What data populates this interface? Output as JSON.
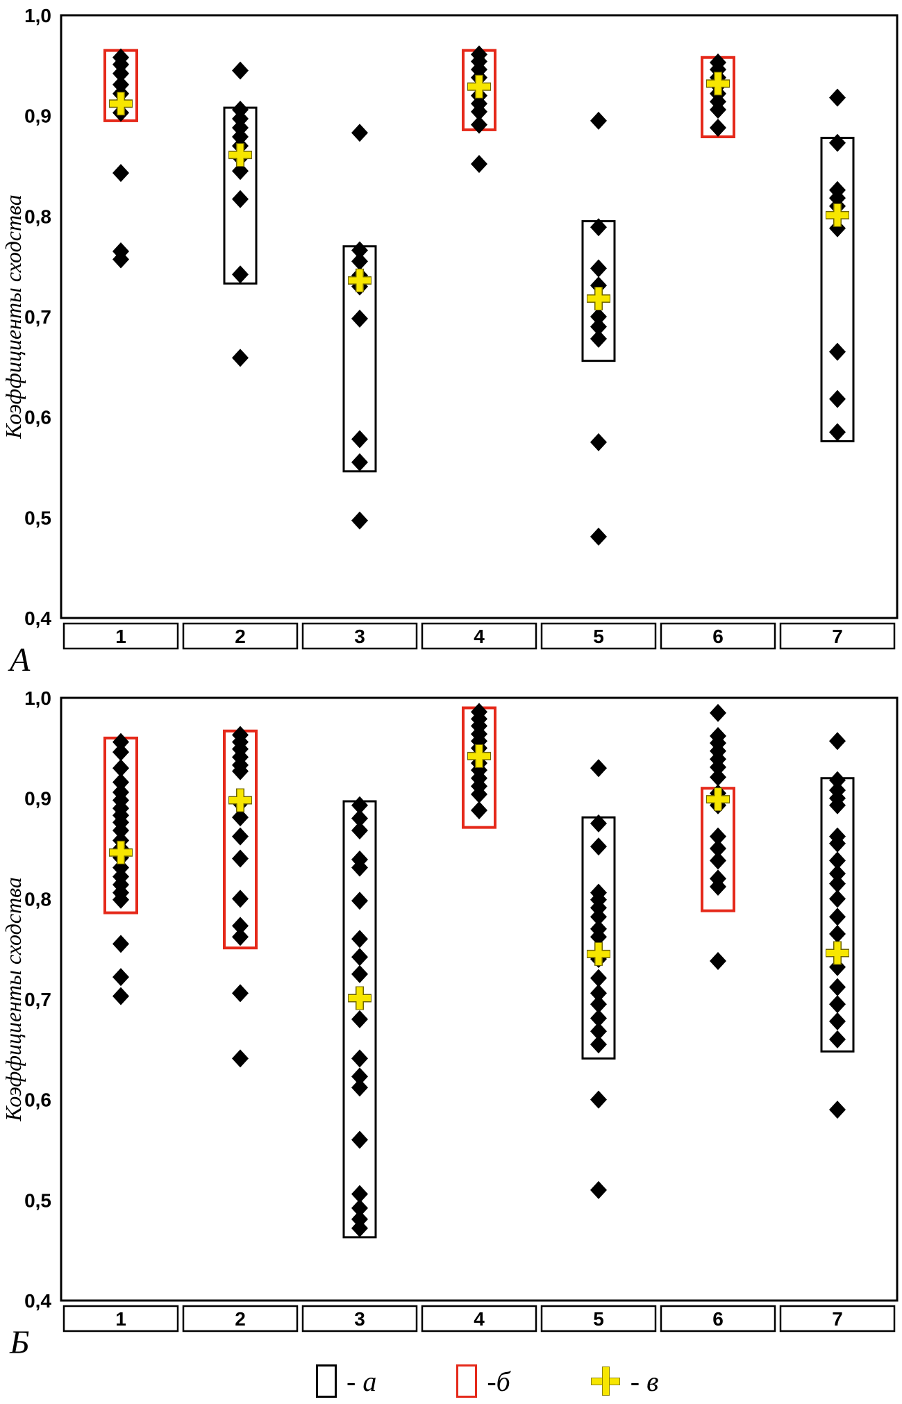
{
  "figure": {
    "panel_a_label": "А",
    "panel_b_label": "Б"
  },
  "chart_data": {
    "type": "scatter",
    "colors": {
      "red_box": "#e5291a",
      "black_box": "#000000",
      "mean_plus": "#f7e600",
      "point": "#000000"
    },
    "legend": {
      "items": [
        {
          "label": "- а",
          "symbol": "black-open-rect"
        },
        {
          "label": "-б",
          "symbol": "red-open-rect"
        },
        {
          "label": "- в",
          "symbol": "yellow-plus"
        }
      ]
    },
    "charts": [
      {
        "panel_label": "А",
        "ylabel": "Коэффициенты сходства",
        "ylim": [
          0.4,
          1.0
        ],
        "yticks": [
          1.0,
          0.9,
          0.8,
          0.7,
          0.6,
          0.5,
          0.4
        ],
        "ytick_labels": [
          "1,0",
          "0,9",
          "0,8",
          "0,7",
          "0,6",
          "0,5",
          "0,4"
        ],
        "categories": [
          "1",
          "2",
          "3",
          "4",
          "5",
          "6",
          "7"
        ],
        "groups": [
          {
            "category": "1",
            "box_low": 0.895,
            "box_high": 0.965,
            "box_color": "red",
            "mean": 0.912,
            "points": [
              0.958,
              0.951,
              0.942,
              0.931,
              0.922,
              0.912,
              0.903,
              0.843,
              0.765,
              0.757
            ]
          },
          {
            "category": "2",
            "box_low": 0.733,
            "box_high": 0.908,
            "box_color": "black",
            "mean": 0.861,
            "points": [
              0.945,
              0.906,
              0.897,
              0.888,
              0.879,
              0.87,
              0.858,
              0.845,
              0.817,
              0.742,
              0.659
            ]
          },
          {
            "category": "3",
            "box_low": 0.546,
            "box_high": 0.77,
            "box_color": "black",
            "mean": 0.736,
            "points": [
              0.883,
              0.766,
              0.755,
              0.741,
              0.73,
              0.698,
              0.578,
              0.555,
              0.497
            ]
          },
          {
            "category": "4",
            "box_low": 0.886,
            "box_high": 0.965,
            "box_color": "red",
            "mean": 0.929,
            "points": [
              0.961,
              0.954,
              0.946,
              0.938,
              0.92,
              0.912,
              0.904,
              0.891,
              0.852
            ]
          },
          {
            "category": "5",
            "box_low": 0.656,
            "box_high": 0.795,
            "box_color": "black",
            "mean": 0.718,
            "points": [
              0.895,
              0.789,
              0.748,
              0.731,
              0.7,
              0.69,
              0.678,
              0.575,
              0.481
            ]
          },
          {
            "category": "6",
            "box_low": 0.879,
            "box_high": 0.958,
            "box_color": "red",
            "mean": 0.932,
            "points": [
              0.953,
              0.946,
              0.938,
              0.93,
              0.922,
              0.914,
              0.906,
              0.888
            ]
          },
          {
            "category": "7",
            "box_low": 0.576,
            "box_high": 0.878,
            "box_color": "black",
            "mean": 0.801,
            "points": [
              0.918,
              0.873,
              0.826,
              0.818,
              0.81,
              0.788,
              0.665,
              0.618,
              0.585
            ]
          }
        ]
      },
      {
        "panel_label": "Б",
        "ylabel": "Коэффициенты сходства",
        "ylim": [
          0.4,
          1.0
        ],
        "yticks": [
          1.0,
          0.9,
          0.8,
          0.7,
          0.6,
          0.5,
          0.4
        ],
        "ytick_labels": [
          "1,0",
          "0,9",
          "0,8",
          "0,7",
          "0,6",
          "0,5",
          "0,4"
        ],
        "categories": [
          "1",
          "2",
          "3",
          "4",
          "5",
          "6",
          "7"
        ],
        "groups": [
          {
            "category": "1",
            "box_low": 0.786,
            "box_high": 0.96,
            "box_color": "red",
            "mean": 0.846,
            "points": [
              0.956,
              0.946,
              0.93,
              0.916,
              0.906,
              0.898,
              0.89,
              0.883,
              0.876,
              0.868,
              0.858,
              0.85,
              0.841,
              0.831,
              0.822,
              0.814,
              0.806,
              0.799,
              0.755,
              0.722,
              0.703
            ]
          },
          {
            "category": "2",
            "box_low": 0.751,
            "box_high": 0.967,
            "box_color": "red",
            "mean": 0.898,
            "points": [
              0.963,
              0.956,
              0.949,
              0.941,
              0.933,
              0.927,
              0.895,
              0.881,
              0.862,
              0.84,
              0.8,
              0.773,
              0.762,
              0.706,
              0.641
            ]
          },
          {
            "category": "3",
            "box_low": 0.463,
            "box_high": 0.897,
            "box_color": "black",
            "mean": 0.701,
            "points": [
              0.893,
              0.88,
              0.868,
              0.839,
              0.831,
              0.798,
              0.76,
              0.742,
              0.725,
              0.68,
              0.641,
              0.623,
              0.612,
              0.56,
              0.506,
              0.492,
              0.481,
              0.472
            ]
          },
          {
            "category": "4",
            "box_low": 0.871,
            "box_high": 0.99,
            "box_color": "red",
            "mean": 0.942,
            "points": [
              0.986,
              0.979,
              0.972,
              0.964,
              0.957,
              0.95,
              0.943,
              0.935,
              0.928,
              0.92,
              0.912,
              0.904,
              0.888
            ]
          },
          {
            "category": "5",
            "box_low": 0.641,
            "box_high": 0.881,
            "box_color": "black",
            "mean": 0.745,
            "points": [
              0.93,
              0.875,
              0.852,
              0.806,
              0.799,
              0.791,
              0.782,
              0.77,
              0.762,
              0.74,
              0.721,
              0.706,
              0.695,
              0.681,
              0.668,
              0.655,
              0.6,
              0.51
            ]
          },
          {
            "category": "6",
            "box_low": 0.788,
            "box_high": 0.91,
            "box_color": "red",
            "mean": 0.899,
            "points": [
              0.985,
              0.962,
              0.955,
              0.947,
              0.939,
              0.931,
              0.921,
              0.905,
              0.893,
              0.862,
              0.85,
              0.838,
              0.82,
              0.812,
              0.738
            ]
          },
          {
            "category": "7",
            "box_low": 0.648,
            "box_high": 0.92,
            "box_color": "black",
            "mean": 0.746,
            "points": [
              0.957,
              0.918,
              0.908,
              0.9,
              0.893,
              0.862,
              0.855,
              0.838,
              0.825,
              0.815,
              0.8,
              0.782,
              0.765,
              0.732,
              0.712,
              0.695,
              0.678,
              0.66,
              0.59
            ]
          }
        ]
      }
    ]
  }
}
